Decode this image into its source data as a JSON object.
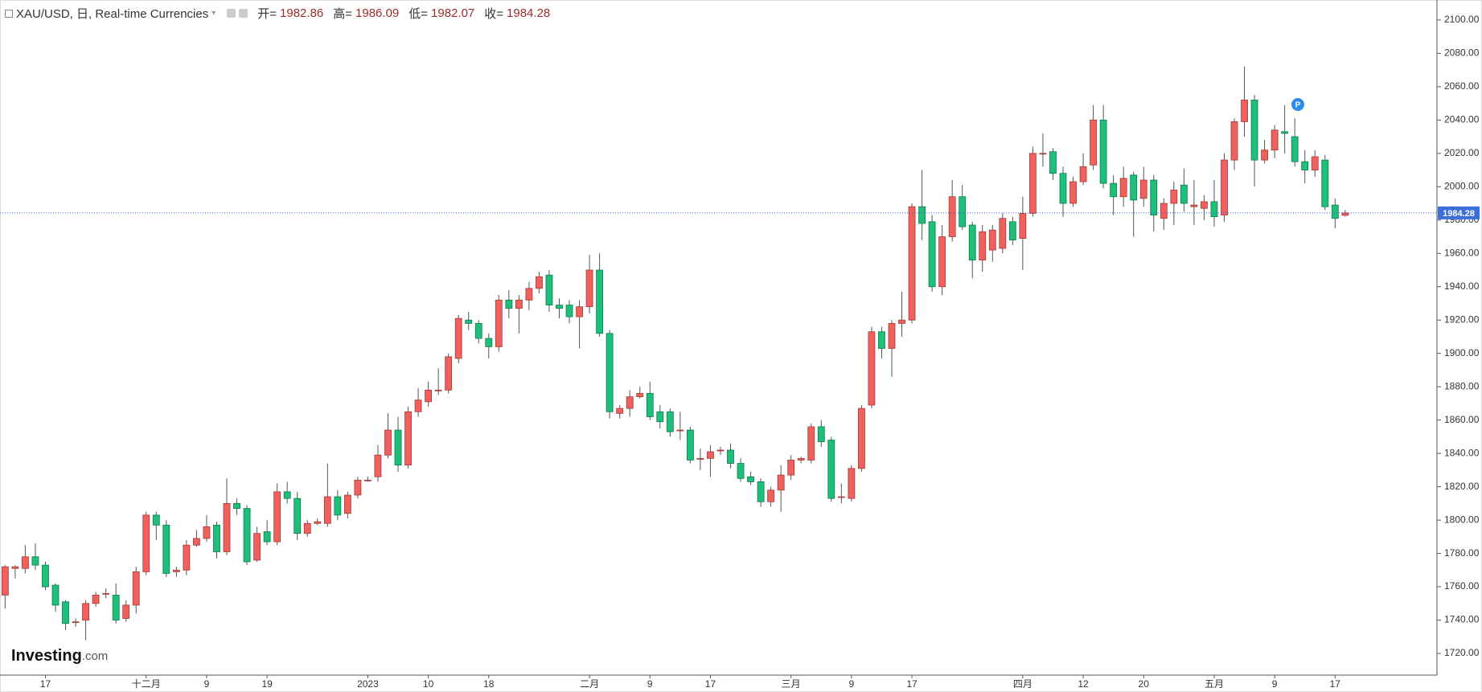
{
  "chart_data": {
    "type": "candlestick",
    "title": "XAU/USD, 日, Real-time Currencies",
    "ohlc_labels": [
      "开=",
      "高=",
      "低=",
      "收="
    ],
    "logo": {
      "brand": "Investing",
      "suffix": ".com"
    },
    "up_color": "#f0605d",
    "down_color": "#1dbf7b",
    "categories": [
      null,
      null,
      null,
      null,
      "17",
      null,
      null,
      null,
      null,
      null,
      null,
      null,
      null,
      null,
      "十二月",
      null,
      null,
      null,
      null,
      null,
      "9",
      null,
      null,
      null,
      null,
      null,
      "19",
      null,
      null,
      null,
      null,
      null,
      null,
      null,
      null,
      null,
      "2023",
      null,
      null,
      null,
      null,
      null,
      "10",
      null,
      null,
      null,
      null,
      null,
      "18",
      null,
      null,
      null,
      null,
      null,
      null,
      null,
      null,
      null,
      "二月",
      null,
      null,
      null,
      null,
      null,
      "9",
      null,
      null,
      null,
      null,
      null,
      "17",
      null,
      null,
      null,
      null,
      null,
      null,
      null,
      "三月",
      null,
      null,
      null,
      null,
      null,
      "9",
      null,
      null,
      null,
      null,
      null,
      "17",
      null,
      null,
      null,
      null,
      null,
      null,
      null,
      null,
      null,
      null,
      "四月",
      null,
      null,
      null,
      null,
      null,
      "12",
      null,
      null,
      null,
      null,
      null,
      "20",
      null,
      null,
      null,
      null,
      null,
      null,
      "五月",
      null,
      null,
      null,
      null,
      null,
      "9",
      null,
      null,
      null,
      null,
      null,
      "17",
      null
    ],
    "open": [
      1755,
      1771,
      1771,
      1778,
      1773,
      1761,
      1751,
      1739,
      1740,
      1750,
      1756,
      1755,
      1741,
      1749,
      1769,
      1803,
      1797,
      1769,
      1770,
      1785,
      1789,
      1797,
      1781,
      1810,
      1807,
      1776,
      1793,
      1787,
      1817,
      1813,
      1792,
      1798,
      1798,
      1814,
      1804,
      1815,
      1824,
      1826,
      1839,
      1854,
      1833,
      1865,
      1871,
      1878,
      1878,
      1897,
      1920,
      1918,
      1909,
      1904,
      1932,
      1927,
      1932,
      1939,
      1947,
      1929,
      1929,
      1922,
      1928,
      1950,
      1912,
      1864,
      1867,
      1874,
      1876,
      1865,
      1865,
      1854,
      1854,
      1837,
      1837,
      1842,
      1842,
      1834,
      1826,
      1823,
      1811,
      1818,
      1827,
      1836,
      1836,
      1856,
      1848,
      1814,
      1813,
      1831,
      1869,
      1913,
      1903,
      1918,
      1920,
      1988,
      1979,
      1940,
      1970,
      1994,
      1977,
      1956,
      1962,
      1963,
      1979,
      1969,
      1984,
      2020,
      2021,
      2008,
      1990,
      2003,
      2013,
      2040,
      2002,
      1994,
      2007,
      1993,
      2004,
      1981,
      1990,
      2001,
      1988,
      1987,
      1991,
      1983,
      2016,
      2039,
      2052,
      2016,
      2022,
      2033,
      2030,
      2015,
      2010,
      2016,
      1989,
      1982.86
    ],
    "high": [
      1773,
      1773,
      1785,
      1786,
      1775,
      1762,
      1752,
      1741,
      1752,
      1757,
      1759,
      1762,
      1752,
      1772,
      1805,
      1805,
      1800,
      1772,
      1788,
      1794,
      1803,
      1799,
      1825,
      1813,
      1809,
      1796,
      1800,
      1822,
      1823,
      1817,
      1800,
      1801,
      1834,
      1818,
      1817,
      1826,
      1826,
      1845,
      1864,
      1862,
      1868,
      1879,
      1883,
      1891,
      1900,
      1923,
      1925,
      1920,
      1912,
      1935,
      1938,
      1935,
      1943,
      1949,
      1950,
      1933,
      1932,
      1932,
      1959,
      1960,
      1914,
      1869,
      1878,
      1880,
      1883,
      1869,
      1867,
      1865,
      1856,
      1843,
      1845,
      1844,
      1846,
      1837,
      1829,
      1825,
      1820,
      1833,
      1839,
      1838,
      1858,
      1860,
      1850,
      1822,
      1833,
      1869,
      1916,
      1916,
      1920,
      1937,
      1990,
      2010,
      1983,
      1977,
      2004,
      2001,
      1979,
      1977,
      1977,
      1984,
      1982,
      1994,
      2024,
      2032,
      2023,
      2012,
      2006,
      2020,
      2049,
      2049,
      2007,
      2012,
      2009,
      2012,
      2007,
      1993,
      2003,
      2011,
      2004,
      1995,
      2004,
      2020,
      2041,
      2072,
      2055,
      2028,
      2037,
      2049,
      2041,
      2022,
      2022,
      2019,
      1993,
      1986.09
    ],
    "low": [
      1747,
      1765,
      1768,
      1770,
      1758,
      1745,
      1734,
      1736,
      1728,
      1748,
      1753,
      1738,
      1739,
      1744,
      1767,
      1788,
      1766,
      1766,
      1767,
      1784,
      1787,
      1777,
      1779,
      1803,
      1773,
      1775,
      1785,
      1785,
      1810,
      1788,
      1790,
      1797,
      1796,
      1800,
      1801,
      1813,
      1823,
      1823,
      1837,
      1829,
      1831,
      1862,
      1868,
      1875,
      1876,
      1894,
      1914,
      1906,
      1897,
      1901,
      1921,
      1912,
      1926,
      1936,
      1925,
      1921,
      1918,
      1903,
      1924,
      1910,
      1861,
      1861,
      1862,
      1873,
      1860,
      1855,
      1850,
      1848,
      1834,
      1830,
      1826,
      1839,
      1831,
      1823,
      1821,
      1808,
      1808,
      1805,
      1824,
      1834,
      1834,
      1844,
      1811,
      1810,
      1811,
      1829,
      1867,
      1897,
      1886,
      1910,
      1918,
      1968,
      1937,
      1935,
      1967,
      1974,
      1945,
      1949,
      1955,
      1960,
      1965,
      1950,
      1982,
      2012,
      2004,
      1982,
      1988,
      2001,
      2010,
      1999,
      1983,
      1988,
      1970,
      1988,
      1973,
      1974,
      1977,
      1985,
      1977,
      1980,
      1976,
      1979,
      2010,
      2030,
      2000,
      2014,
      2017,
      2020,
      2012,
      2002,
      2006,
      1986,
      1975,
      1982.07
    ],
    "close": [
      1772,
      1772,
      1778,
      1773,
      1760,
      1749,
      1738,
      1739,
      1750,
      1755,
      1756,
      1740,
      1749,
      1769,
      1803,
      1797,
      1768,
      1770,
      1785,
      1789,
      1796,
      1781,
      1810,
      1807,
      1775,
      1792,
      1787,
      1817,
      1813,
      1792,
      1798,
      1799,
      1814,
      1803,
      1815,
      1824,
      1824,
      1839,
      1854,
      1833,
      1865,
      1872,
      1878,
      1878,
      1898,
      1921,
      1918,
      1909,
      1904,
      1932,
      1927,
      1932,
      1939,
      1946,
      1929,
      1927,
      1922,
      1928,
      1950,
      1912,
      1865,
      1867,
      1874,
      1876,
      1862,
      1859,
      1853,
      1854,
      1836,
      1837,
      1841,
      1842,
      1834,
      1825,
      1823,
      1811,
      1818,
      1827,
      1836,
      1837,
      1856,
      1847,
      1813,
      1814,
      1831,
      1867,
      1913,
      1903,
      1918,
      1920,
      1988,
      1978,
      1940,
      1970,
      1994,
      1976,
      1956,
      1973,
      1974,
      1981,
      1968,
      1984,
      2020,
      2020,
      2008,
      1990,
      2003,
      2012,
      2040,
      2002,
      1994,
      2005,
      1992,
      2004,
      1983,
      1990,
      1998,
      1990,
      1989,
      1991,
      1982,
      2016,
      2039,
      2052,
      2016,
      2022,
      2034,
      2032,
      2015,
      2010,
      2018,
      1988,
      1981,
      1984.28
    ],
    "ylim": [
      1707,
      2112
    ],
    "yticks": [
      {
        "value": 1720,
        "label": "1720.00"
      },
      {
        "value": 1740,
        "label": "1740.00"
      },
      {
        "value": 1760,
        "label": "1760.00"
      },
      {
        "value": 1780,
        "label": "1780.00"
      },
      {
        "value": 1800,
        "label": "1800.00"
      },
      {
        "value": 1820,
        "label": "1820.00"
      },
      {
        "value": 1840,
        "label": "1840.00"
      },
      {
        "value": 1860,
        "label": "1860.00"
      },
      {
        "value": 1880,
        "label": "1880.00"
      },
      {
        "value": 1900,
        "label": "1900.00"
      },
      {
        "value": 1920,
        "label": "1920.00"
      },
      {
        "value": 1940,
        "label": "1940.00"
      },
      {
        "value": 1960,
        "label": "1960.00"
      },
      {
        "value": 1980,
        "label": "1980.00"
      },
      {
        "value": 2000,
        "label": "2000.00"
      },
      {
        "value": 2020,
        "label": "2020.00"
      },
      {
        "value": 2040,
        "label": "2040.00"
      },
      {
        "value": 2060,
        "label": "2060.00"
      },
      {
        "value": 2080,
        "label": "2080.00"
      },
      {
        "value": 2100,
        "label": "2100.00"
      }
    ],
    "grid": false
  }
}
